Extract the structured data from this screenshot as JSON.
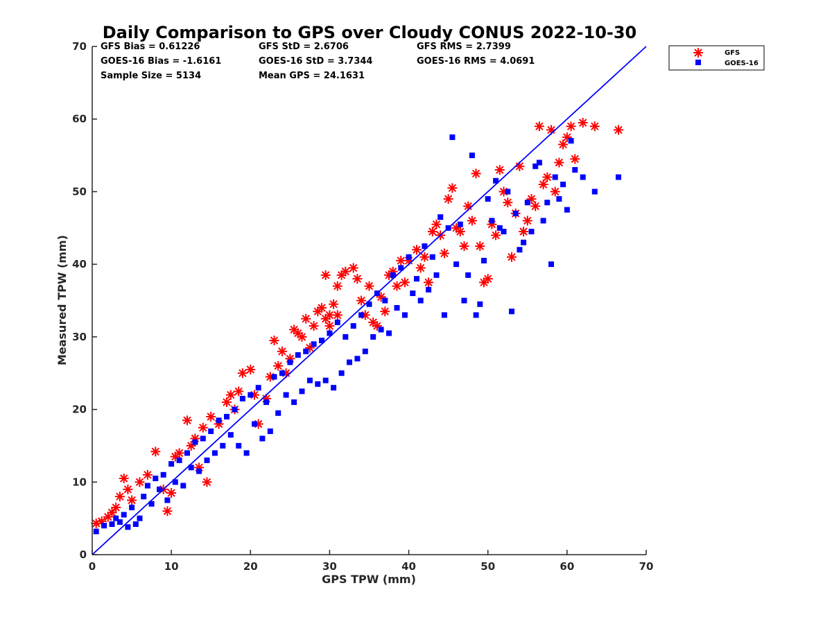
{
  "chart_data": {
    "type": "scatter",
    "title": "Daily Comparison to GPS over Cloudy CONUS 2022-10-30",
    "xlabel": "GPS TPW (mm)",
    "ylabel": "Measured TPW (mm)",
    "xlim": [
      0,
      70
    ],
    "ylim": [
      0,
      70
    ],
    "xticks": [
      0,
      10,
      20,
      30,
      40,
      50,
      60,
      70
    ],
    "yticks": [
      0,
      10,
      20,
      30,
      40,
      50,
      60,
      70
    ],
    "grid": false,
    "legend_position": "top-right outside",
    "stats": [
      [
        "GFS Bias = 0.61226",
        "GFS StD = 2.6706",
        "GFS RMS = 2.7399"
      ],
      [
        "GOES-16 Bias = -1.6161",
        "GOES-16 StD = 3.7344",
        "GOES-16 RMS = 4.0691"
      ],
      [
        "Sample Size = 5134",
        "Mean GPS = 24.1631"
      ]
    ],
    "reference_line": {
      "x": [
        0,
        70
      ],
      "y": [
        0,
        70
      ],
      "color": "#0000ff"
    },
    "series": [
      {
        "name": "GFS",
        "marker": "asterisk",
        "color": "#ff0000",
        "points": [
          [
            0.5,
            4.3
          ],
          [
            1.2,
            4.6
          ],
          [
            2.0,
            5.2
          ],
          [
            2.5,
            5.8
          ],
          [
            3.0,
            6.5
          ],
          [
            3.5,
            8.0
          ],
          [
            4.0,
            10.5
          ],
          [
            4.5,
            9.0
          ],
          [
            5.0,
            7.5
          ],
          [
            6.0,
            10.0
          ],
          [
            7.0,
            11.0
          ],
          [
            8.0,
            14.2
          ],
          [
            9.0,
            9.0
          ],
          [
            9.5,
            6.0
          ],
          [
            10.0,
            8.5
          ],
          [
            10.5,
            13.5
          ],
          [
            11.0,
            14.0
          ],
          [
            12.0,
            18.5
          ],
          [
            12.5,
            15.0
          ],
          [
            13.0,
            16.0
          ],
          [
            13.5,
            12.0
          ],
          [
            14.0,
            17.5
          ],
          [
            14.5,
            10.0
          ],
          [
            15.0,
            19.0
          ],
          [
            16.0,
            18.0
          ],
          [
            17.0,
            21.0
          ],
          [
            17.5,
            22.0
          ],
          [
            18.0,
            20.0
          ],
          [
            18.5,
            22.5
          ],
          [
            19.0,
            25.0
          ],
          [
            20.0,
            25.5
          ],
          [
            20.5,
            22.0
          ],
          [
            21.0,
            18.0
          ],
          [
            22.0,
            21.5
          ],
          [
            22.5,
            24.5
          ],
          [
            23.0,
            29.5
          ],
          [
            23.5,
            26.0
          ],
          [
            24.0,
            28.0
          ],
          [
            24.5,
            25.0
          ],
          [
            25.0,
            27.0
          ],
          [
            25.5,
            31.0
          ],
          [
            26.0,
            30.5
          ],
          [
            26.5,
            30.0
          ],
          [
            27.0,
            32.5
          ],
          [
            27.5,
            28.5
          ],
          [
            28.0,
            31.5
          ],
          [
            28.5,
            33.5
          ],
          [
            29.0,
            34.0
          ],
          [
            29.5,
            32.5
          ],
          [
            30.0,
            33.0
          ],
          [
            30.5,
            34.5
          ],
          [
            30.0,
            31.5
          ],
          [
            31.0,
            33.0
          ],
          [
            29.5,
            38.5
          ],
          [
            31.0,
            37.0
          ],
          [
            31.5,
            38.5
          ],
          [
            32.0,
            39.0
          ],
          [
            33.0,
            39.5
          ],
          [
            33.5,
            38.0
          ],
          [
            34.0,
            35.0
          ],
          [
            34.5,
            33.0
          ],
          [
            35.0,
            37.0
          ],
          [
            35.5,
            32.0
          ],
          [
            36.0,
            31.5
          ],
          [
            36.5,
            35.5
          ],
          [
            37.0,
            33.5
          ],
          [
            37.5,
            38.5
          ],
          [
            38.0,
            39.0
          ],
          [
            38.5,
            37.0
          ],
          [
            39.0,
            40.5
          ],
          [
            39.5,
            37.5
          ],
          [
            40.0,
            40.5
          ],
          [
            41.0,
            42.0
          ],
          [
            41.5,
            39.5
          ],
          [
            42.0,
            41.0
          ],
          [
            42.5,
            37.5
          ],
          [
            43.0,
            44.5
          ],
          [
            43.5,
            45.5
          ],
          [
            44.0,
            44.0
          ],
          [
            44.5,
            41.5
          ],
          [
            45.0,
            49.0
          ],
          [
            45.5,
            50.5
          ],
          [
            46.0,
            45.0
          ],
          [
            46.5,
            44.5
          ],
          [
            47.0,
            42.5
          ],
          [
            47.5,
            48.0
          ],
          [
            48.0,
            46.0
          ],
          [
            48.5,
            52.5
          ],
          [
            49.0,
            42.5
          ],
          [
            49.5,
            37.5
          ],
          [
            50.0,
            38.0
          ],
          [
            50.5,
            45.5
          ],
          [
            51.0,
            44.0
          ],
          [
            51.5,
            53.0
          ],
          [
            52.0,
            50.0
          ],
          [
            52.5,
            48.5
          ],
          [
            53.0,
            41.0
          ],
          [
            53.5,
            47.0
          ],
          [
            54.0,
            53.5
          ],
          [
            54.5,
            44.5
          ],
          [
            55.0,
            46.0
          ],
          [
            55.5,
            49.0
          ],
          [
            56.0,
            48.0
          ],
          [
            56.5,
            59.0
          ],
          [
            57.0,
            51.0
          ],
          [
            57.5,
            52.0
          ],
          [
            58.0,
            58.5
          ],
          [
            58.5,
            50.0
          ],
          [
            59.0,
            54.0
          ],
          [
            59.5,
            56.5
          ],
          [
            60.0,
            57.5
          ],
          [
            60.5,
            59.0
          ],
          [
            61.0,
            54.5
          ],
          [
            62.0,
            59.5
          ],
          [
            63.5,
            59.0
          ],
          [
            66.5,
            58.5
          ]
        ]
      },
      {
        "name": "GOES-16",
        "marker": "square",
        "color": "#0000ff",
        "points": [
          [
            0.5,
            3.2
          ],
          [
            1.5,
            4.0
          ],
          [
            2.5,
            4.2
          ],
          [
            3.0,
            5.0
          ],
          [
            3.5,
            4.5
          ],
          [
            4.0,
            5.5
          ],
          [
            4.5,
            3.8
          ],
          [
            5.0,
            6.5
          ],
          [
            5.5,
            4.2
          ],
          [
            6.0,
            5.0
          ],
          [
            6.5,
            8.0
          ],
          [
            7.0,
            9.5
          ],
          [
            7.5,
            7.0
          ],
          [
            8.0,
            10.5
          ],
          [
            8.5,
            9.0
          ],
          [
            9.0,
            11.0
          ],
          [
            9.5,
            7.5
          ],
          [
            10.0,
            12.5
          ],
          [
            10.5,
            10.0
          ],
          [
            11.0,
            13.0
          ],
          [
            11.5,
            9.5
          ],
          [
            12.0,
            14.0
          ],
          [
            12.5,
            12.0
          ],
          [
            13.0,
            15.5
          ],
          [
            13.5,
            11.5
          ],
          [
            14.0,
            16.0
          ],
          [
            14.5,
            13.0
          ],
          [
            15.0,
            17.0
          ],
          [
            15.5,
            14.0
          ],
          [
            16.0,
            18.5
          ],
          [
            16.5,
            15.0
          ],
          [
            17.0,
            19.0
          ],
          [
            17.5,
            16.5
          ],
          [
            18.0,
            20.0
          ],
          [
            18.5,
            15.0
          ],
          [
            19.0,
            21.5
          ],
          [
            19.5,
            14.0
          ],
          [
            20.0,
            22.0
          ],
          [
            20.5,
            18.0
          ],
          [
            21.0,
            23.0
          ],
          [
            21.5,
            16.0
          ],
          [
            22.0,
            21.0
          ],
          [
            22.5,
            17.0
          ],
          [
            23.0,
            24.5
          ],
          [
            23.5,
            19.5
          ],
          [
            24.0,
            25.0
          ],
          [
            24.5,
            22.0
          ],
          [
            25.0,
            26.5
          ],
          [
            25.5,
            21.0
          ],
          [
            26.0,
            27.5
          ],
          [
            26.5,
            22.5
          ],
          [
            27.0,
            28.0
          ],
          [
            27.5,
            24.0
          ],
          [
            28.0,
            29.0
          ],
          [
            28.5,
            23.5
          ],
          [
            29.0,
            29.5
          ],
          [
            29.5,
            24.0
          ],
          [
            30.0,
            30.5
          ],
          [
            30.5,
            23.0
          ],
          [
            31.0,
            32.0
          ],
          [
            31.5,
            25.0
          ],
          [
            32.0,
            30.0
          ],
          [
            32.5,
            26.5
          ],
          [
            33.0,
            31.5
          ],
          [
            33.5,
            27.0
          ],
          [
            34.0,
            33.0
          ],
          [
            34.5,
            28.0
          ],
          [
            35.0,
            34.5
          ],
          [
            35.5,
            30.0
          ],
          [
            36.0,
            36.0
          ],
          [
            36.5,
            31.0
          ],
          [
            37.0,
            35.0
          ],
          [
            37.5,
            30.5
          ],
          [
            38.0,
            38.5
          ],
          [
            38.5,
            34.0
          ],
          [
            39.0,
            39.5
          ],
          [
            39.5,
            33.0
          ],
          [
            40.0,
            41.0
          ],
          [
            40.5,
            36.0
          ],
          [
            41.0,
            38.0
          ],
          [
            41.5,
            35.0
          ],
          [
            42.0,
            42.5
          ],
          [
            42.5,
            36.5
          ],
          [
            43.0,
            41.0
          ],
          [
            43.5,
            38.5
          ],
          [
            44.0,
            46.5
          ],
          [
            44.5,
            33.0
          ],
          [
            45.0,
            45.0
          ],
          [
            45.5,
            57.5
          ],
          [
            46.0,
            40.0
          ],
          [
            46.5,
            45.5
          ],
          [
            47.0,
            35.0
          ],
          [
            47.5,
            38.5
          ],
          [
            48.0,
            55.0
          ],
          [
            48.5,
            33.0
          ],
          [
            49.0,
            34.5
          ],
          [
            49.5,
            40.5
          ],
          [
            50.0,
            49.0
          ],
          [
            50.5,
            46.0
          ],
          [
            51.0,
            51.5
          ],
          [
            51.5,
            45.0
          ],
          [
            52.0,
            44.5
          ],
          [
            52.5,
            50.0
          ],
          [
            53.0,
            33.5
          ],
          [
            53.5,
            47.0
          ],
          [
            54.0,
            42.0
          ],
          [
            54.5,
            43.0
          ],
          [
            55.0,
            48.5
          ],
          [
            55.5,
            44.5
          ],
          [
            56.0,
            53.5
          ],
          [
            56.5,
            54.0
          ],
          [
            57.0,
            46.0
          ],
          [
            57.5,
            48.5
          ],
          [
            58.0,
            40.0
          ],
          [
            58.5,
            52.0
          ],
          [
            59.0,
            49.0
          ],
          [
            59.5,
            51.0
          ],
          [
            60.0,
            47.5
          ],
          [
            60.5,
            57.0
          ],
          [
            61.0,
            53.0
          ],
          [
            62.0,
            52.0
          ],
          [
            63.5,
            50.0
          ],
          [
            66.5,
            52.0
          ]
        ]
      }
    ],
    "legend": [
      {
        "label": "GFS",
        "marker": "asterisk",
        "color": "#ff0000"
      },
      {
        "label": "GOES-16",
        "marker": "square",
        "color": "#0000ff"
      }
    ]
  }
}
